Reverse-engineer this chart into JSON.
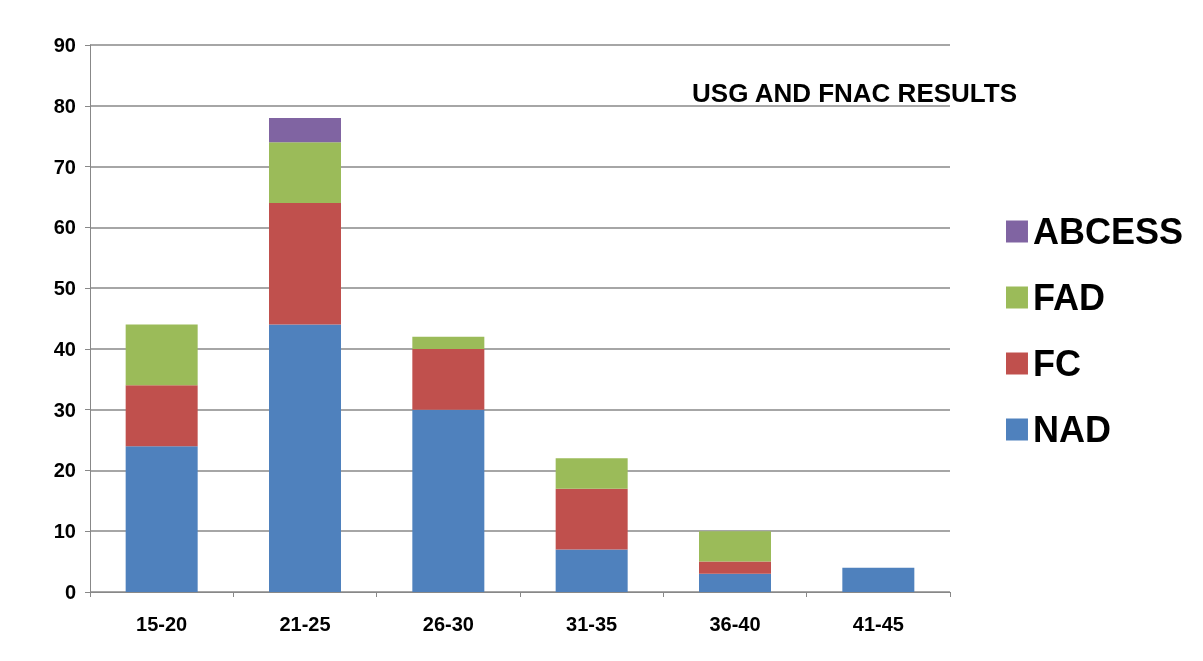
{
  "chart_data": {
    "type": "bar",
    "title": "USG AND FNAC RESULTS",
    "stacked": true,
    "categories": [
      "15-20",
      "21-25",
      "26-30",
      "31-35",
      "36-40",
      "41-45"
    ],
    "series": [
      {
        "name": "NAD",
        "color": "#4f81bd",
        "values": [
          24,
          44,
          30,
          7,
          3,
          4
        ]
      },
      {
        "name": "FC",
        "color": "#c0504d",
        "values": [
          10,
          20,
          10,
          10,
          2,
          0
        ]
      },
      {
        "name": "FAD",
        "color": "#9bbb59",
        "values": [
          10,
          10,
          2,
          5,
          5,
          0
        ]
      },
      {
        "name": "ABCESS",
        "color": "#8064a2",
        "values": [
          0,
          4,
          0,
          0,
          0,
          0
        ]
      }
    ],
    "ylim": [
      0,
      90
    ],
    "yticks": [
      0,
      10,
      20,
      30,
      40,
      50,
      60,
      70,
      80,
      90
    ],
    "grid": "y",
    "legend": "right"
  }
}
